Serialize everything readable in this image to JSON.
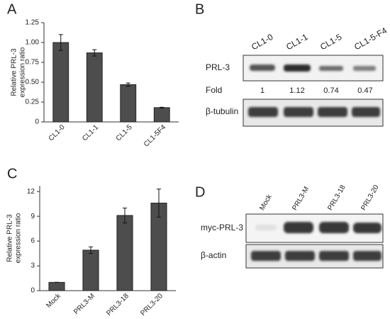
{
  "panel_labels": [
    "A",
    "B",
    "C",
    "D"
  ],
  "chart_data": [
    {
      "type": "bar",
      "ylabel": [
        "Relative PRL-3",
        "expression ratio"
      ],
      "categories": [
        "CL1-0",
        "CL1-1",
        "CL1-5",
        "CL1-5F4"
      ],
      "values": [
        1.0,
        0.87,
        0.47,
        0.18
      ],
      "errors": [
        0.1,
        0.04,
        0.02,
        0.005
      ],
      "color": "#4d4d4d",
      "ylim": [
        0,
        1.25
      ],
      "yticks": [
        0,
        0.25,
        {
          "value": 0.5,
          "label": "0.50"
        },
        0.75,
        {
          "value": 1,
          "label": "1.00"
        },
        1.25
      ]
    },
    {
      "type": "bar",
      "ylabel": [
        "Relative PRL-3",
        "expression ratio"
      ],
      "categories": [
        "Mock",
        "PRL3-M",
        "PRL3-18",
        "PRL3-20"
      ],
      "values": [
        1.0,
        4.9,
        9.1,
        10.6
      ],
      "errors": [
        0,
        0.4,
        0.9,
        1.7
      ],
      "color": "#4d4d4d",
      "ylim": [
        0,
        12.7
      ],
      "yticks": [
        0,
        3,
        6,
        9,
        12
      ]
    }
  ],
  "blots": [
    {
      "lanes": [
        "CL1-0",
        "CL1-1",
        "CL1-5",
        "CL1-5-F4"
      ],
      "rows": [
        "PRL-3",
        "β-tubulin"
      ],
      "fold_label": "Fold",
      "fold": [
        "1",
        "1.12",
        "0.74",
        "0.47"
      ]
    },
    {
      "lanes": [
        "Mock",
        "PRL3-M",
        "PRL3-18",
        "PRL3-20"
      ],
      "rows": [
        "myc-PRL-3",
        "β-actin"
      ]
    }
  ]
}
